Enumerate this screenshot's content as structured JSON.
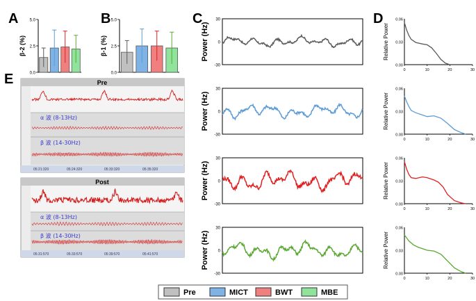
{
  "panel_labels": {
    "a": "A",
    "b": "B",
    "c": "C",
    "d": "D",
    "e": "E"
  },
  "colors": {
    "pre": "#c0c0c0",
    "mict": "#7fb3e6",
    "bwt": "#f07f7f",
    "mbe": "#8fe39a",
    "pre_trace": "#5a5a5a",
    "mict_trace": "#5b9bd5",
    "bwt_trace": "#e02020",
    "mbe_trace": "#5aa832",
    "eeg_red": "#d42020",
    "eeg_bg": "#dcdcdc",
    "eeg_header": "#c8c8c8"
  },
  "legend": {
    "items": [
      {
        "label": "Pre",
        "key": "pre"
      },
      {
        "label": "MICT",
        "key": "mict"
      },
      {
        "label": "BWT",
        "key": "bwt"
      },
      {
        "label": "MBE",
        "key": "mbe"
      }
    ]
  },
  "eeg": {
    "pre": {
      "title": "Pre",
      "alpha": "α 波 (8-13Hz)",
      "beta": "β 波 (14-30Hz)",
      "times": [
        "05:21:320",
        "05:24:320",
        "05:33:320",
        "05:35:320"
      ]
    },
    "post": {
      "title": "Post",
      "alpha": "α 波 (8-13Hz)",
      "beta": "β 波 (14-30Hz)",
      "times": [
        "05:31:570",
        "05:33:570",
        "05:39:570",
        "05:41:570"
      ]
    }
  },
  "chart_data": [
    {
      "id": "A",
      "type": "bar",
      "ylabel": "β-2 (%)",
      "ylim": [
        0,
        5.0
      ],
      "yticks": [
        "0.0",
        "2.5",
        "5.0"
      ],
      "categories": [
        "Pre",
        "MICT",
        "BWT",
        "MBE"
      ],
      "values": [
        1.4,
        2.3,
        2.4,
        2.2
      ],
      "errors": [
        0.9,
        1.7,
        1.5,
        1.3
      ]
    },
    {
      "id": "B",
      "type": "bar",
      "ylabel": "β-1 (%)",
      "ylim": [
        0,
        5.0
      ],
      "yticks": [
        "0.0",
        "2.5",
        "5.0"
      ],
      "categories": [
        "Pre",
        "MICT",
        "BWT",
        "MBE"
      ],
      "values": [
        1.9,
        2.5,
        2.5,
        2.3
      ],
      "errors": [
        1.1,
        1.6,
        1.4,
        1.5
      ]
    },
    {
      "id": "C",
      "type": "line",
      "ylabel": "Power (Hz)",
      "ylim": [
        -30,
        30
      ],
      "yticks": [
        "-30",
        "0",
        "30"
      ],
      "series": [
        {
          "name": "Pre",
          "amp": 7
        },
        {
          "name": "MICT",
          "amp": 10
        },
        {
          "name": "BWT",
          "amp": 14
        },
        {
          "name": "MBE",
          "amp": 11
        }
      ]
    },
    {
      "id": "D",
      "type": "line",
      "ylabel": "Relative Power",
      "xlim": [
        0,
        30
      ],
      "ylim": [
        0,
        0.06
      ],
      "xticks": [
        "0",
        "10",
        "20",
        "30"
      ],
      "yticks": [
        "0.00",
        "0.03",
        "0.06"
      ],
      "series": [
        {
          "name": "Pre",
          "x": [
            0,
            1,
            2,
            3,
            5,
            8,
            10,
            12,
            14,
            16,
            18,
            20
          ],
          "y": [
            0.055,
            0.045,
            0.038,
            0.033,
            0.029,
            0.027,
            0.026,
            0.022,
            0.015,
            0.007,
            0.002,
            0.0
          ]
        },
        {
          "name": "MICT",
          "x": [
            0,
            1,
            2,
            3,
            5,
            8,
            10,
            13,
            16,
            19,
            22,
            25,
            27
          ],
          "y": [
            0.05,
            0.042,
            0.036,
            0.031,
            0.028,
            0.025,
            0.023,
            0.024,
            0.021,
            0.014,
            0.006,
            0.002,
            0.0
          ]
        },
        {
          "name": "BWT",
          "x": [
            0,
            1,
            2,
            3,
            5,
            8,
            10,
            13,
            15,
            17,
            19,
            22,
            25,
            27
          ],
          "y": [
            0.055,
            0.045,
            0.038,
            0.034,
            0.033,
            0.035,
            0.034,
            0.031,
            0.028,
            0.022,
            0.012,
            0.004,
            0.001,
            0.0
          ]
        },
        {
          "name": "MBE",
          "x": [
            0,
            1,
            2,
            4,
            6,
            8,
            10,
            13,
            16,
            19,
            22,
            25,
            27
          ],
          "y": [
            0.05,
            0.046,
            0.042,
            0.037,
            0.034,
            0.032,
            0.03,
            0.029,
            0.025,
            0.016,
            0.007,
            0.002,
            0.0
          ]
        }
      ]
    }
  ]
}
